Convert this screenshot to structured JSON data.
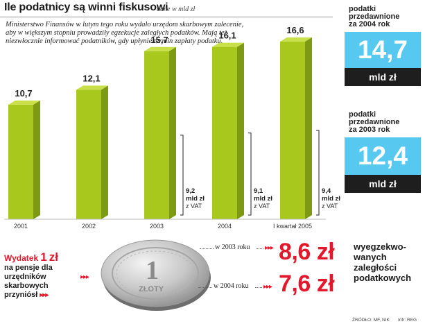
{
  "header": {
    "title": "Ile podatnicy są winni fiskusowi",
    "subtitle": "dane w mld zł",
    "note": "Ministerstwo Finansów w lutym tego roku wydało urzędom skarbowym zalecenie, aby w większym stopniu prowadziły egzekucje zaległych podatków. Mają też niezwłocznie informować podatników, gdy upłynie termin zapłaty podatku."
  },
  "chart_data": {
    "type": "bar",
    "title": "Ile podatnicy są winni fiskusowi",
    "subtitle": "dane w mld zł",
    "categories": [
      "2001",
      "2002",
      "2003",
      "2004",
      "I kwartał 2005"
    ],
    "values": [
      10.7,
      12.1,
      15.7,
      16.1,
      16.6
    ],
    "value_labels": [
      "10,7",
      "12,1",
      "15,7",
      "16,1",
      "16,6"
    ],
    "bar_color": "#a8c81e",
    "bar_side_color": "#7e9a12",
    "bar_top_color": "#c9e04a",
    "ylim": [
      0,
      17.5
    ],
    "grid": false,
    "annotations": [
      {
        "after_category": "2003",
        "value": "9,2",
        "unit": "mld zł",
        "note": "z VAT"
      },
      {
        "after_category": "2004",
        "value": "9,1",
        "unit": "mld zł",
        "note": "z VAT"
      },
      {
        "after_category": "I kwartał 2005",
        "value": "9,4",
        "unit": "mld zł",
        "note": "z VAT"
      }
    ]
  },
  "boxes": [
    {
      "head_line1": "podatki",
      "head_line2": "przedawnione",
      "head_line3": "za 2004 rok",
      "value": "14,7",
      "unit": "mld zł"
    },
    {
      "head_line1": "podatki",
      "head_line2": "przedawnione",
      "head_line3": "za 2003 rok",
      "value": "12,4",
      "unit": "mld zł"
    }
  ],
  "bottom": {
    "wydatek_prefix": "Wydatek",
    "wydatek_amount": "1",
    "wydatek_currency": "zł",
    "wydatek_line2": "na pensje dla",
    "wydatek_line3": "urzędników",
    "wydatek_line4": "skarbowych",
    "wydatek_line5": "przyniósł",
    "arrow_glyph": "▸▸▸",
    "row1_label": "w 2003 roku",
    "row1_value": "8,6 zł",
    "row2_label": "w 2004 roku",
    "row2_value": "7,6 zł",
    "desc_line1": "wyegzekwo-",
    "desc_line2": "wanych",
    "desc_line3": "zaległości",
    "desc_line4": "podatkowych",
    "coin_digit": "1",
    "coin_text": "ZŁOTY"
  },
  "footer": {
    "source": "ŹRÓDŁO: MF, NIK",
    "info": "Infr: REG"
  },
  "colors": {
    "accent_red": "#e3182d",
    "box_blue": "#57c8ef",
    "box_dark": "#1e1e1e",
    "bar_green": "#a8c81e"
  }
}
